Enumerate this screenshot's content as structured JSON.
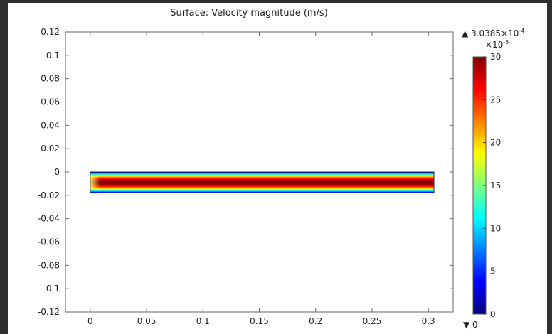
{
  "chart_data": {
    "type": "heatmap",
    "title": "Surface: Velocity magnitude (m/s)",
    "xlabel": "",
    "ylabel": "",
    "xlim": [
      -0.022,
      0.322
    ],
    "ylim": [
      -0.12,
      0.12
    ],
    "x_ticks": [
      0,
      0.05,
      0.1,
      0.15,
      0.2,
      0.25,
      0.3
    ],
    "x_tick_labels": [
      "0",
      "0.05",
      "0.1",
      "0.15",
      "0.2",
      "0.25",
      "0.3"
    ],
    "y_ticks": [
      0.12,
      0.1,
      0.08,
      0.06,
      0.04,
      0.02,
      0,
      -0.02,
      -0.04,
      -0.06,
      -0.08,
      -0.1,
      -0.12
    ],
    "y_tick_labels": [
      "0.12",
      "0.1",
      "0.08",
      "0.06",
      "0.04",
      "0.02",
      "0",
      "-0.02",
      "-0.04",
      "-0.06",
      "-0.08",
      "-0.1",
      "-0.12"
    ],
    "grid": false,
    "domain": {
      "x": [
        0,
        0.305
      ],
      "y": [
        -0.018,
        0
      ]
    },
    "field": {
      "centerline_y": -0.009,
      "max_value": 30,
      "min_value": 0
    },
    "colorbar": {
      "max_label": "▲ 3.0385×10",
      "max_exponent": "-4",
      "scale_label": "×10",
      "scale_exponent": "-5",
      "min_label": "▼ 0",
      "range": [
        0,
        30
      ],
      "ticks": [
        0,
        5,
        10,
        15,
        20,
        25,
        30
      ],
      "tick_labels": [
        "0",
        "5",
        "10",
        "15",
        "20",
        "25",
        "30"
      ],
      "colormap": "rainbow",
      "colors": [
        "#00007f",
        "#0000ff",
        "#007fff",
        "#00ffff",
        "#7fff7f",
        "#ffff00",
        "#ff7f00",
        "#ff0000",
        "#7f0000"
      ]
    }
  }
}
